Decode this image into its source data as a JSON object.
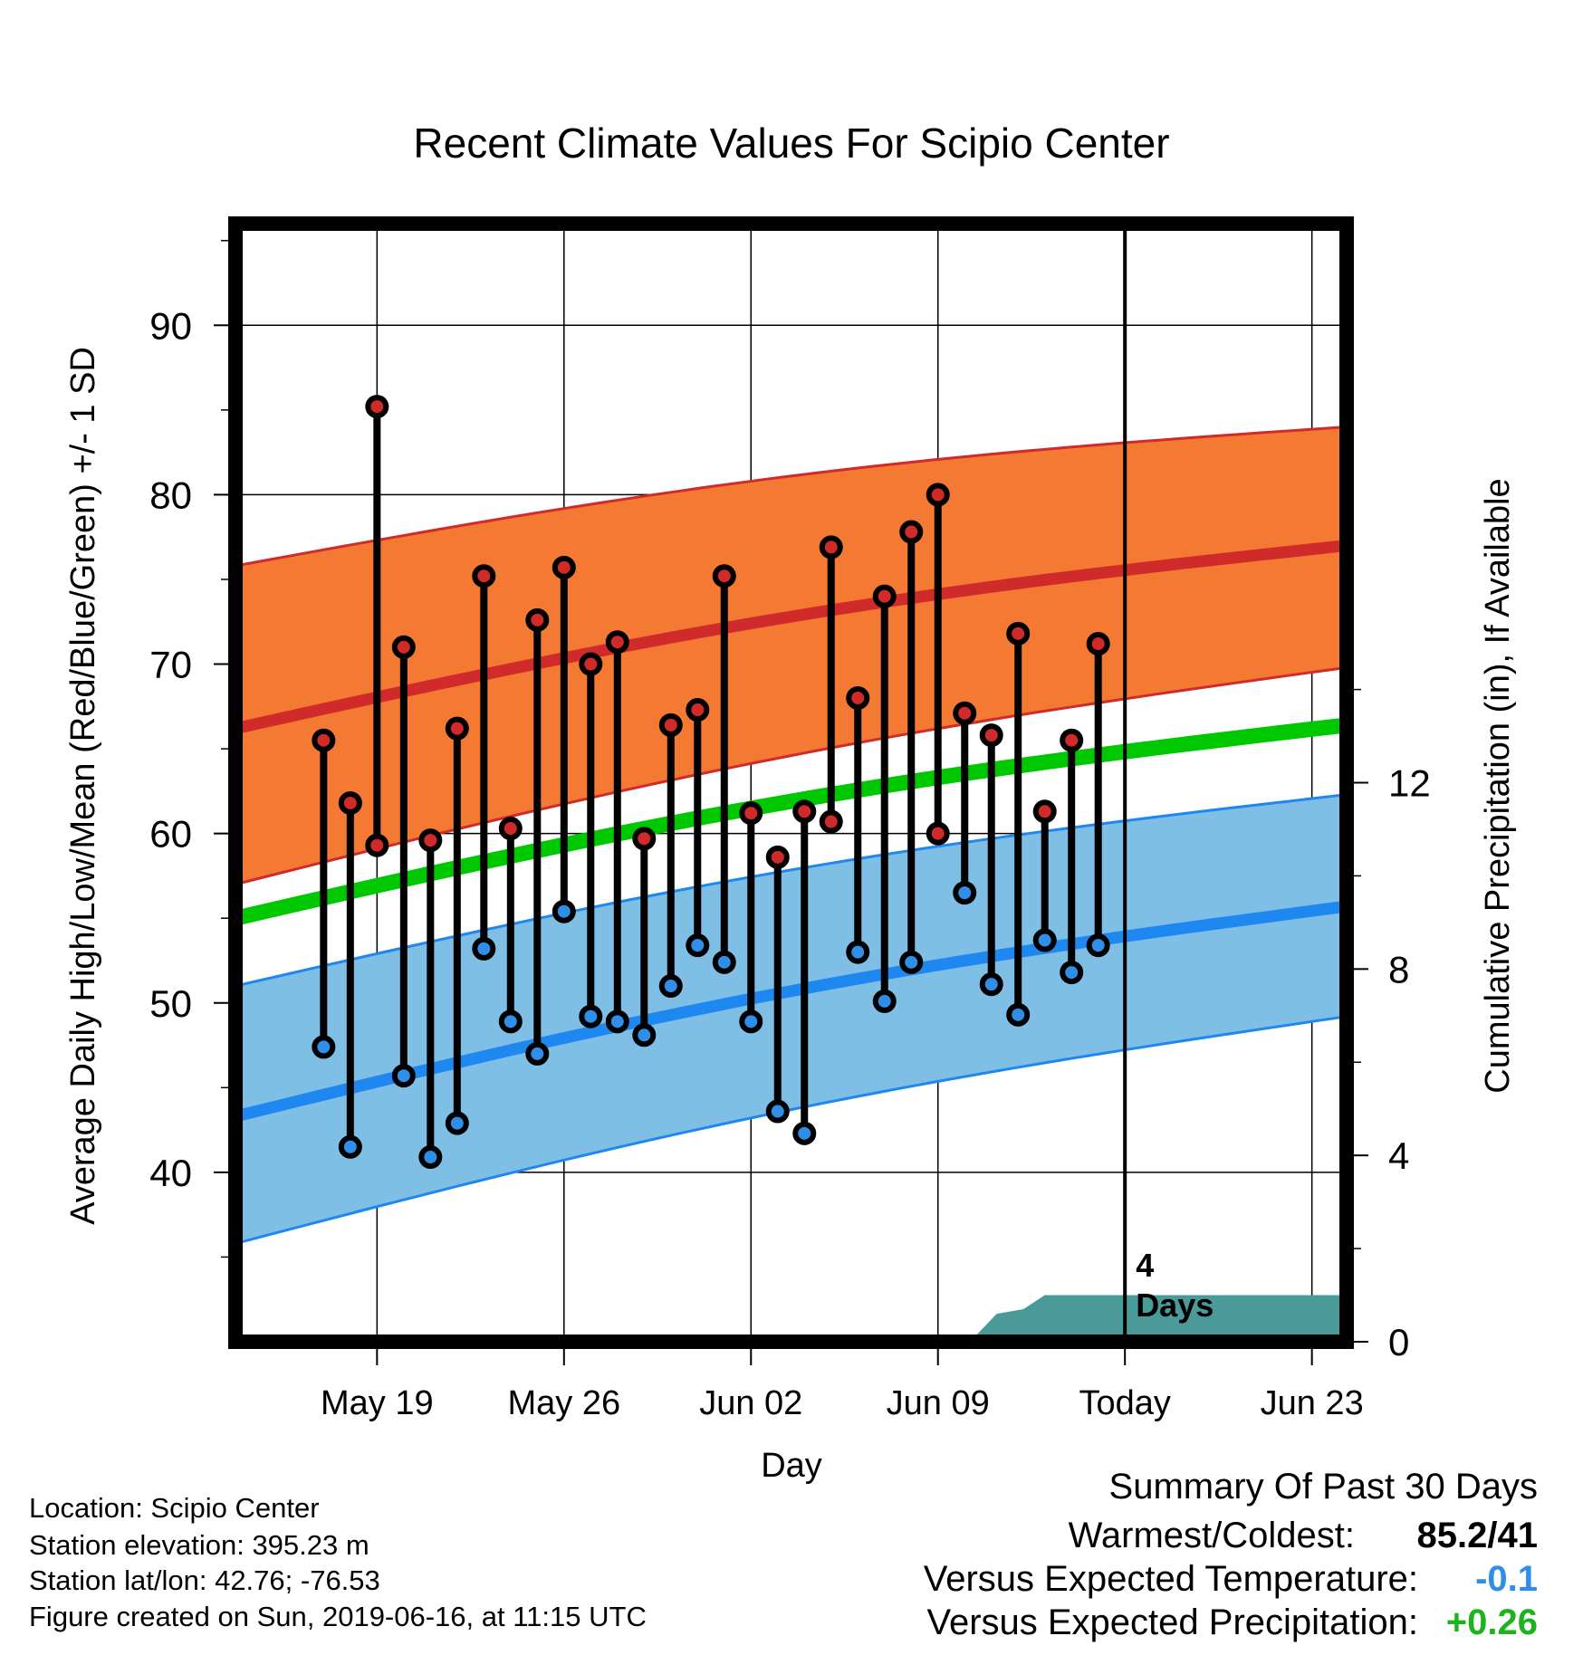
{
  "chart_data": {
    "type": "line",
    "title": "Recent Climate Values For Scipio Center",
    "xlabel": "Day",
    "ylabel_left": "Average Daily High/Low/Mean (Red/Blue/Green) +/- 1 SD",
    "ylabel_right": "Cumulative Precipitation (in), If Available",
    "ylim_left": [
      30,
      96
    ],
    "ylim_right": [
      0,
      24
    ],
    "yticks_left": [
      40,
      50,
      60,
      70,
      80,
      90
    ],
    "yticks_right": [
      0,
      4,
      8,
      12
    ],
    "xlim_days": [
      -33.3,
      8.3
    ],
    "xticks": [
      {
        "day": -28,
        "label": "May 19"
      },
      {
        "day": -21,
        "label": "May 26"
      },
      {
        "day": -14,
        "label": "Jun 02"
      },
      {
        "day": -7,
        "label": "Jun 09"
      },
      {
        "day": 0,
        "label": "Today"
      },
      {
        "day": 7,
        "label": "Jun 23"
      }
    ],
    "today_marker": {
      "day": 0,
      "label": "4 Days"
    },
    "highs": [
      65.5,
      61.8,
      85.2,
      71.0,
      59.6,
      66.2,
      75.2,
      60.3,
      72.6,
      75.7,
      70.0,
      71.3,
      59.7,
      66.4,
      67.3,
      75.2,
      61.2,
      58.6,
      61.3,
      76.9,
      68.0,
      74.0,
      77.8,
      80.0,
      67.1,
      65.8,
      71.8,
      61.3,
      65.5,
      71.2
    ],
    "lows": [
      47.4,
      41.5,
      59.3,
      45.7,
      40.9,
      42.9,
      53.2,
      48.9,
      47.0,
      55.4,
      49.2,
      48.9,
      48.1,
      51.0,
      53.4,
      52.4,
      48.9,
      43.6,
      42.3,
      60.7,
      53.0,
      50.1,
      52.4,
      60.0,
      56.5,
      51.1,
      49.3,
      53.7,
      51.8,
      53.4
    ],
    "high_is_below_normal": [
      false,
      false,
      false,
      false,
      false,
      false,
      false,
      false,
      false,
      false,
      false,
      false,
      false,
      false,
      false,
      false,
      false,
      false,
      false,
      false,
      false,
      false,
      false,
      false,
      false,
      false,
      false,
      false,
      false,
      false
    ],
    "low_is_above_normal": [
      false,
      false,
      true,
      false,
      false,
      false,
      false,
      false,
      false,
      false,
      false,
      false,
      false,
      false,
      false,
      false,
      false,
      false,
      false,
      true,
      false,
      false,
      false,
      true,
      false,
      false,
      false,
      false,
      false,
      false
    ],
    "normal_high_mean": [
      66.2,
      77.0
    ],
    "normal_high_sd_band": [
      [
        57.0,
        75.8
      ],
      [
        69.8,
        84.0
      ]
    ],
    "normal_low_mean": [
      43.3,
      55.7
    ],
    "normal_low_sd_band": [
      [
        35.8,
        51.0
      ],
      [
        49.2,
        62.3
      ]
    ],
    "normal_mean": [
      55.0,
      66.4
    ],
    "precip_cumulative": [
      {
        "day": -5.8,
        "value": 0.0
      },
      {
        "day": -4.8,
        "value": 0.6
      },
      {
        "day": -3.8,
        "value": 0.7
      },
      {
        "day": -3.0,
        "value": 1.0
      },
      {
        "day": 8.3,
        "value": 1.0
      }
    ],
    "colors": {
      "high_band": "#f47932",
      "high_line": "#d12a2a",
      "low_band": "#7fbfe6",
      "low_line": "#1e88f0",
      "mean_line": "#00c800",
      "precip": "#4a9a9a",
      "high_dot": "#d12a2a",
      "low_dot": "#2f8fe8"
    }
  },
  "footer": {
    "location": "Location: Scipio Center",
    "elevation": "Station elevation: 395.23 m",
    "latlon": "Station lat/lon: 42.76; -76.53",
    "created": "Figure created on Sun, 2019-06-16, at 11:15 UTC"
  },
  "summary": {
    "heading": "Summary Of Past 30 Days",
    "warm_cold_label": "Warmest/Coldest:",
    "warm_cold_value": "85.2/41",
    "temp_label": "Versus Expected Temperature:",
    "temp_value": "-0.1",
    "temp_color": "#2f8fe8",
    "precip_label": "Versus Expected Precipitation:",
    "precip_value": "+0.26",
    "precip_color": "#1db31d"
  }
}
